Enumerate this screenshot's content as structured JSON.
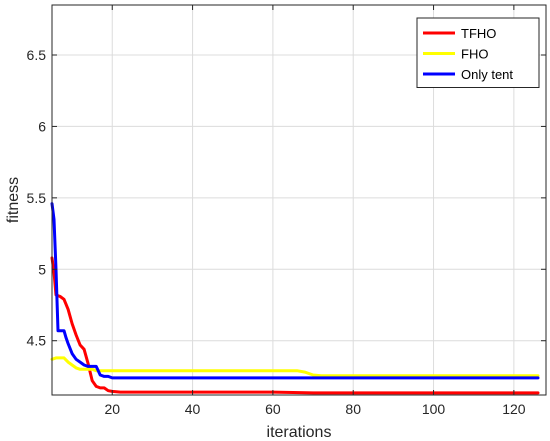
{
  "chart_data": {
    "type": "line",
    "title": "",
    "xlabel": "iterations",
    "ylabel": "fitness",
    "xlim": [
      5,
      128
    ],
    "ylim": [
      4.12,
      6.85
    ],
    "xticks": [
      20,
      40,
      60,
      80,
      100,
      120
    ],
    "yticks": [
      4.5,
      5,
      5.5,
      6,
      6.5
    ],
    "xtick_labels": [
      "20",
      "40",
      "60",
      "80",
      "100",
      "120"
    ],
    "ytick_labels": [
      "4.5",
      "5",
      "5.5",
      "6",
      "6.5"
    ],
    "grid": true,
    "legend_position": "top-right",
    "series": [
      {
        "name": "TFHO",
        "color": "#ff0000",
        "x": [
          5,
          5.5,
          6,
          7,
          8,
          9,
          10,
          11,
          12,
          13,
          14,
          15,
          16,
          17,
          18,
          19,
          20,
          22,
          25,
          30,
          40,
          50,
          60,
          70,
          80,
          90,
          100,
          110,
          120,
          126
        ],
        "y": [
          5.08,
          4.98,
          4.82,
          4.81,
          4.79,
          4.72,
          4.62,
          4.54,
          4.47,
          4.44,
          4.34,
          4.22,
          4.18,
          4.17,
          4.17,
          4.15,
          4.145,
          4.14,
          4.14,
          4.14,
          4.14,
          4.14,
          4.14,
          4.135,
          4.135,
          4.135,
          4.135,
          4.135,
          4.135,
          4.135
        ]
      },
      {
        "name": "FHO",
        "color": "#ffff00",
        "x": [
          5,
          6,
          7,
          8,
          9,
          10,
          11,
          12,
          13,
          14,
          15,
          16,
          18,
          20,
          30,
          40,
          50,
          60,
          66,
          68,
          70,
          72,
          80,
          90,
          100,
          110,
          120,
          126
        ],
        "y": [
          4.37,
          4.38,
          4.38,
          4.38,
          4.35,
          4.33,
          4.31,
          4.3,
          4.3,
          4.3,
          4.3,
          4.29,
          4.29,
          4.29,
          4.29,
          4.29,
          4.29,
          4.29,
          4.29,
          4.28,
          4.26,
          4.255,
          4.255,
          4.255,
          4.255,
          4.255,
          4.255,
          4.255
        ]
      },
      {
        "name": "Only tent",
        "color": "#0000ff",
        "x": [
          5,
          5.5,
          6,
          6.5,
          7,
          8,
          8.5,
          9,
          10,
          11,
          12,
          13,
          14,
          15,
          16,
          17,
          18,
          19,
          20,
          25,
          30,
          40,
          50,
          60,
          70,
          80,
          90,
          100,
          110,
          120,
          126
        ],
        "y": [
          5.46,
          5.35,
          5.0,
          4.57,
          4.57,
          4.57,
          4.52,
          4.48,
          4.41,
          4.37,
          4.35,
          4.33,
          4.32,
          4.32,
          4.32,
          4.26,
          4.25,
          4.25,
          4.24,
          4.24,
          4.24,
          4.24,
          4.24,
          4.24,
          4.24,
          4.24,
          4.24,
          4.24,
          4.24,
          4.24,
          4.24
        ]
      }
    ]
  }
}
